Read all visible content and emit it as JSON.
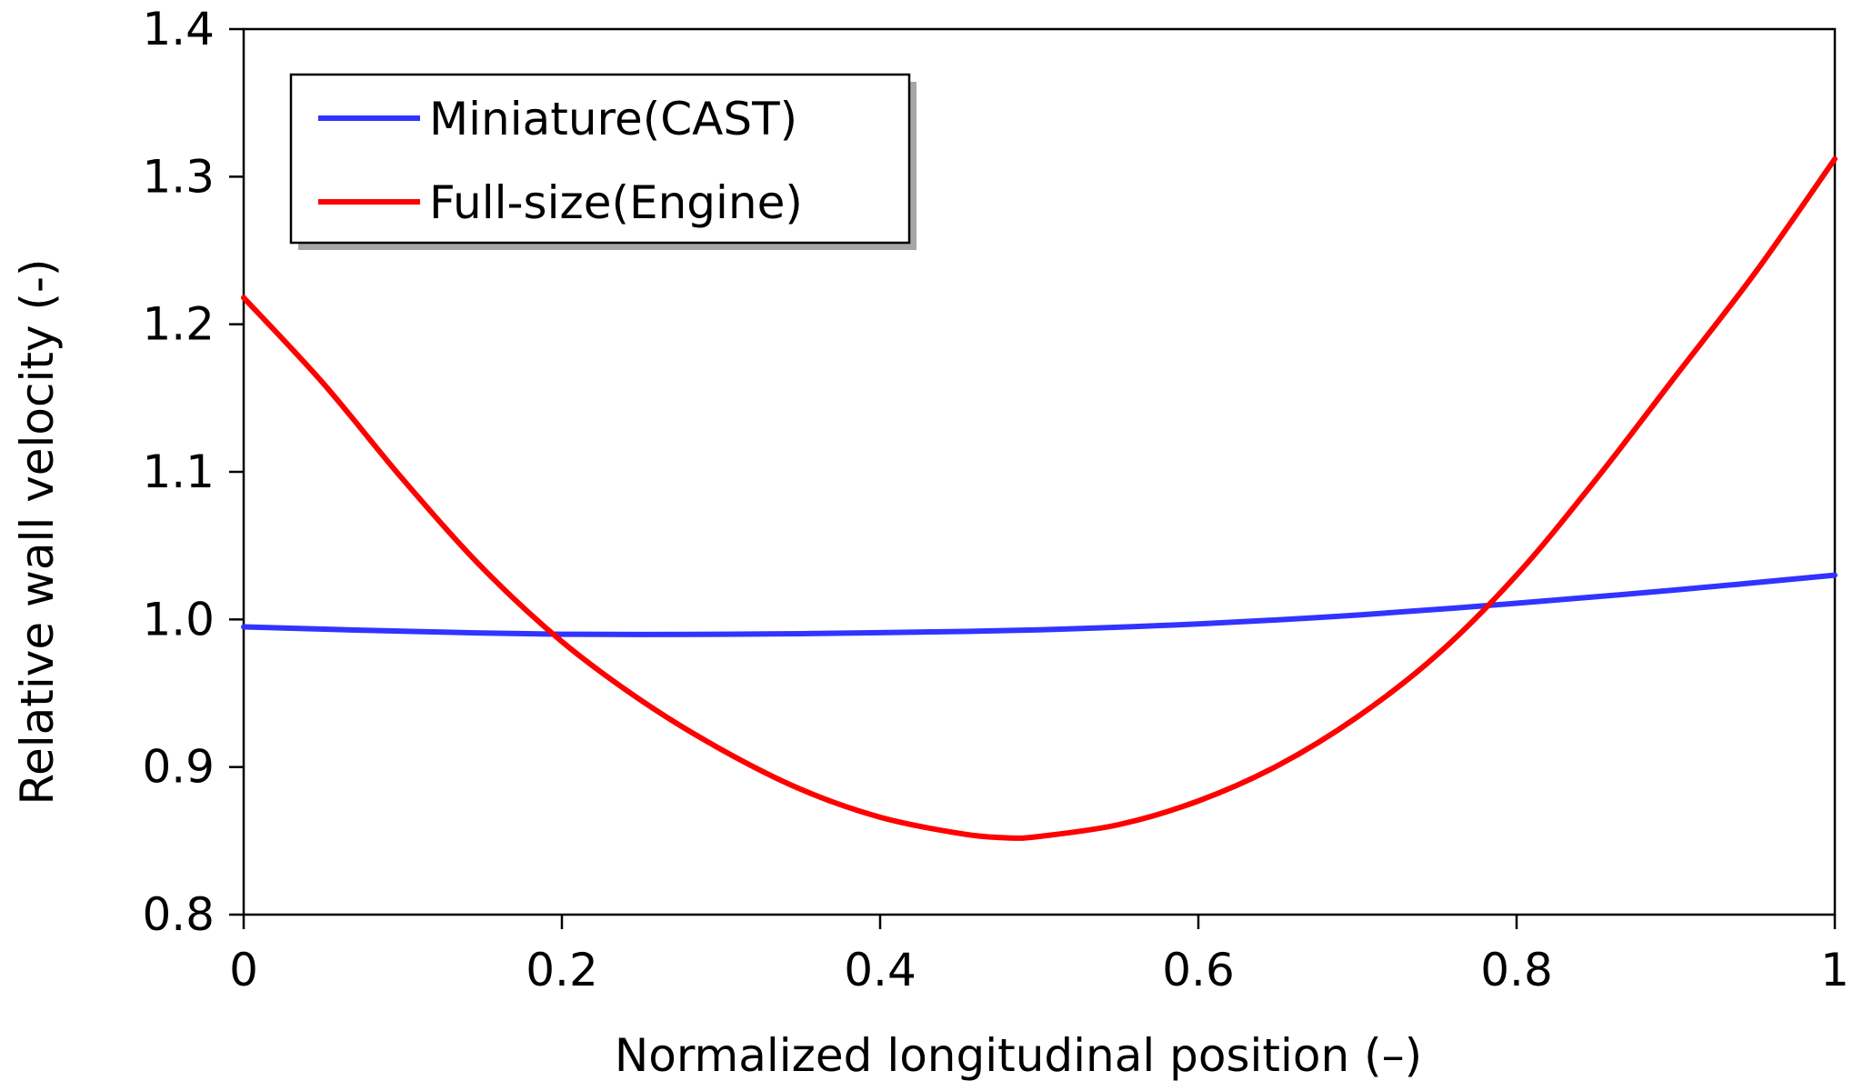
{
  "chart_data": {
    "type": "line",
    "title": "",
    "xlabel": "Normalized longitudinal position (–)",
    "ylabel": "Relative wall velocity (-)",
    "xlim": [
      0,
      1
    ],
    "ylim": [
      0.8,
      1.4
    ],
    "xticks": [
      0,
      0.2,
      0.4,
      0.6,
      0.8,
      1
    ],
    "xtick_labels": [
      "0",
      "0.2",
      "0.4",
      "0.6",
      "0.8",
      "1"
    ],
    "yticks": [
      0.8,
      0.9,
      1.0,
      1.1,
      1.2,
      1.3,
      1.4
    ],
    "ytick_labels": [
      "0.8",
      "0.9",
      "1.0",
      "1.1",
      "1.2",
      "1.3",
      "1.4"
    ],
    "grid": false,
    "legend_position": "top-left",
    "series": [
      {
        "name": "Miniature(CAST)",
        "color": "#3333ff",
        "x": [
          0,
          0.1,
          0.2,
          0.3,
          0.4,
          0.5,
          0.6,
          0.7,
          0.8,
          0.9,
          1.0
        ],
        "y": [
          0.995,
          0.992,
          0.99,
          0.99,
          0.991,
          0.993,
          0.997,
          1.003,
          1.011,
          1.02,
          1.03
        ]
      },
      {
        "name": "Full-size(Engine)",
        "color": "#ff0000",
        "x": [
          0,
          0.05,
          0.1,
          0.15,
          0.2,
          0.25,
          0.3,
          0.35,
          0.4,
          0.45,
          0.48,
          0.5,
          0.55,
          0.6,
          0.65,
          0.7,
          0.75,
          0.8,
          0.85,
          0.9,
          0.95,
          1.0
        ],
        "y": [
          1.218,
          1.16,
          1.095,
          1.035,
          0.985,
          0.945,
          0.912,
          0.885,
          0.866,
          0.855,
          0.852,
          0.853,
          0.861,
          0.877,
          0.901,
          0.934,
          0.976,
          1.03,
          1.095,
          1.165,
          1.235,
          1.312
        ]
      }
    ]
  }
}
